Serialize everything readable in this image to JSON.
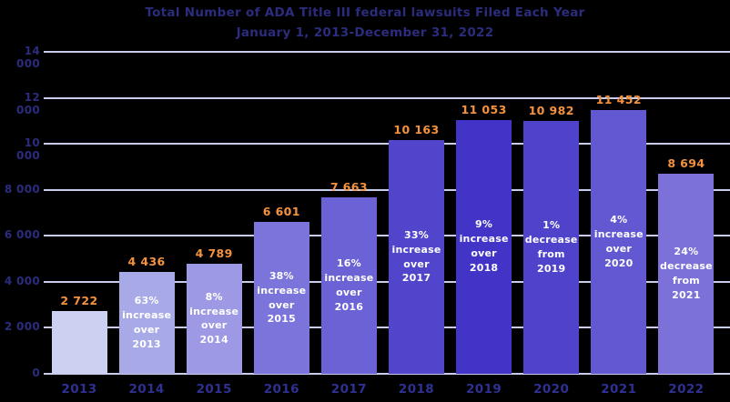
{
  "chart_data": {
    "type": "bar",
    "title": "Total  Number of ADA Title III federal lawsuits Filed Each Year",
    "subtitle": "January 1, 2013-December 31, 2022",
    "xlabel": "",
    "ylabel": "",
    "ylim": [
      0,
      14000
    ],
    "grid": true,
    "legend": "none",
    "ytick_values": [
      14000,
      12000,
      10000,
      8000,
      6000,
      4000,
      2000,
      0
    ],
    "ytick_labels": [
      "14 000",
      "12 000",
      "10 000",
      "8 000",
      "6 000",
      "4 000",
      "2 000",
      "0"
    ],
    "categories": [
      "2013",
      "2014",
      "2015",
      "2016",
      "2017",
      "2018",
      "2019",
      "2020",
      "2021",
      "2022"
    ],
    "values": [
      2722,
      4436,
      4789,
      6601,
      7663,
      10163,
      11053,
      10982,
      11452,
      8694
    ],
    "value_labels": [
      "2 722",
      "4 436",
      "4 789",
      "6 601",
      "7 663",
      "10 163",
      "11 053",
      "10 982",
      "11 452",
      "8 694"
    ],
    "annotations": [
      "",
      "63%\nincrease\nover 2013",
      "8%\nincrease\nover 2014",
      "38%\nincrease\nover 2015",
      "16%\nincrease\nover 2016",
      "33%\nincrease\nover 2017",
      "9%\nincrease\nover 2018",
      "1%\ndecrease\nfrom 2019",
      "4%\nincrease\nover 2020",
      "24%\ndecrease\nfrom 2021"
    ],
    "bar_colors": [
      "#cdd1f1",
      "#a8aae8",
      "#9d99e4",
      "#7b74da",
      "#6b62d6",
      "#5145cc",
      "#4134c7",
      "#4f43cb",
      "#6259d2",
      "#7b71d9"
    ],
    "colors": {
      "background": "#000000",
      "title": "#2b2c7d",
      "axis_label": "#2b2c7d",
      "year_label": "#2e3092",
      "gridline": "#c9cdec",
      "value_label": "#f5923f",
      "annotation": "#ffffff"
    }
  }
}
